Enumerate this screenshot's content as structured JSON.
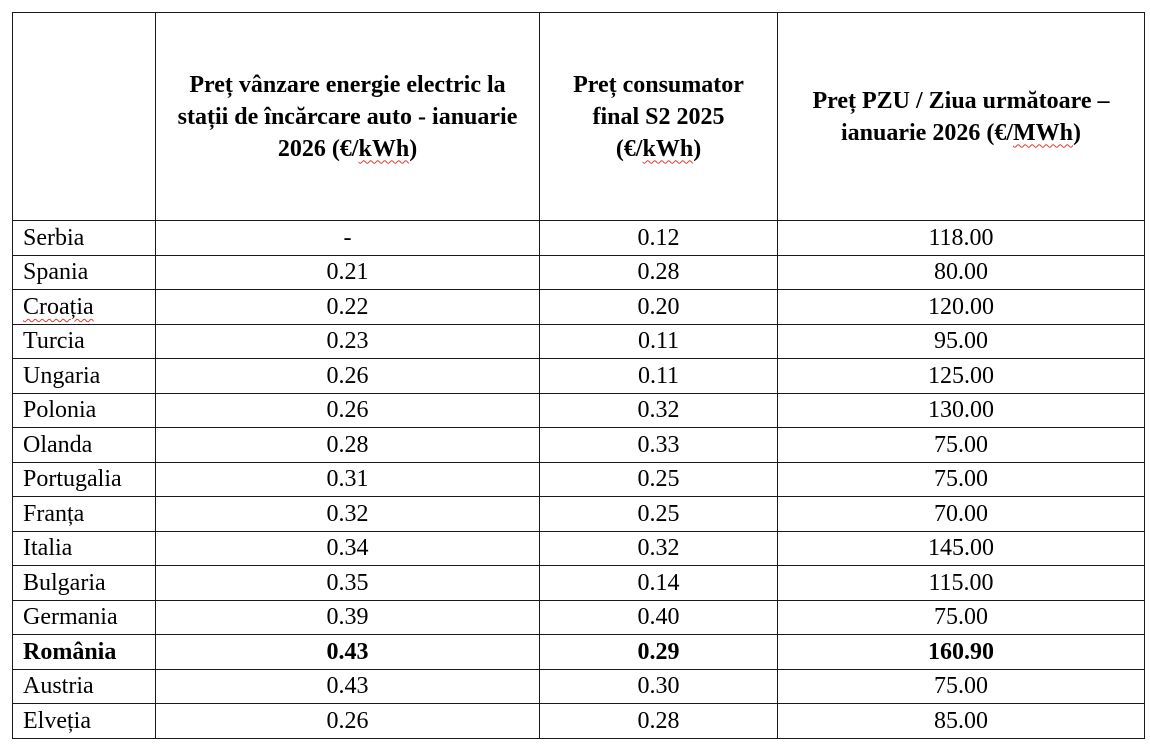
{
  "table": {
    "headers": [
      "",
      "Preț vânzare energie electric la stații de încărcare auto - ianuarie 2026 (€/kWh)",
      "Preț consumator final S2 2025 (€/kWh)",
      "Preț PZU / Ziua următoare – ianuarie  2026 (€/MWh)"
    ],
    "rows": [
      {
        "country": "Serbia",
        "charging": "-",
        "consumer": "0.12",
        "pzu": "118.00"
      },
      {
        "country": "Spania",
        "charging": "0.21",
        "consumer": "0.28",
        "pzu": "80.00"
      },
      {
        "country": "Croația",
        "charging": "0.22",
        "consumer": "0.20",
        "pzu": "120.00"
      },
      {
        "country": "Turcia",
        "charging": "0.23",
        "consumer": "0.11",
        "pzu": "95.00"
      },
      {
        "country": "Ungaria",
        "charging": "0.26",
        "consumer": "0.11",
        "pzu": "125.00"
      },
      {
        "country": "Polonia",
        "charging": "0.26",
        "consumer": "0.32",
        "pzu": "130.00"
      },
      {
        "country": "Olanda",
        "charging": "0.28",
        "consumer": "0.33",
        "pzu": "75.00"
      },
      {
        "country": "Portugalia",
        "charging": "0.31",
        "consumer": "0.25",
        "pzu": "75.00"
      },
      {
        "country": "Franța",
        "charging": "0.32",
        "consumer": "0.25",
        "pzu": "70.00"
      },
      {
        "country": "Italia",
        "charging": "0.34",
        "consumer": "0.32",
        "pzu": "145.00"
      },
      {
        "country": "Bulgaria",
        "charging": "0.35",
        "consumer": "0.14",
        "pzu": "115.00"
      },
      {
        "country": "Germania",
        "charging": "0.39",
        "consumer": "0.40",
        "pzu": "75.00"
      },
      {
        "country": "România",
        "charging": "0.43",
        "consumer": "0.29",
        "pzu": "160.90",
        "bold": true
      },
      {
        "country": "Austria",
        "charging": "0.43",
        "consumer": "0.30",
        "pzu": "75.00"
      },
      {
        "country": "Elveția",
        "charging": "0.26",
        "consumer": "0.28",
        "pzu": "85.00"
      }
    ]
  }
}
